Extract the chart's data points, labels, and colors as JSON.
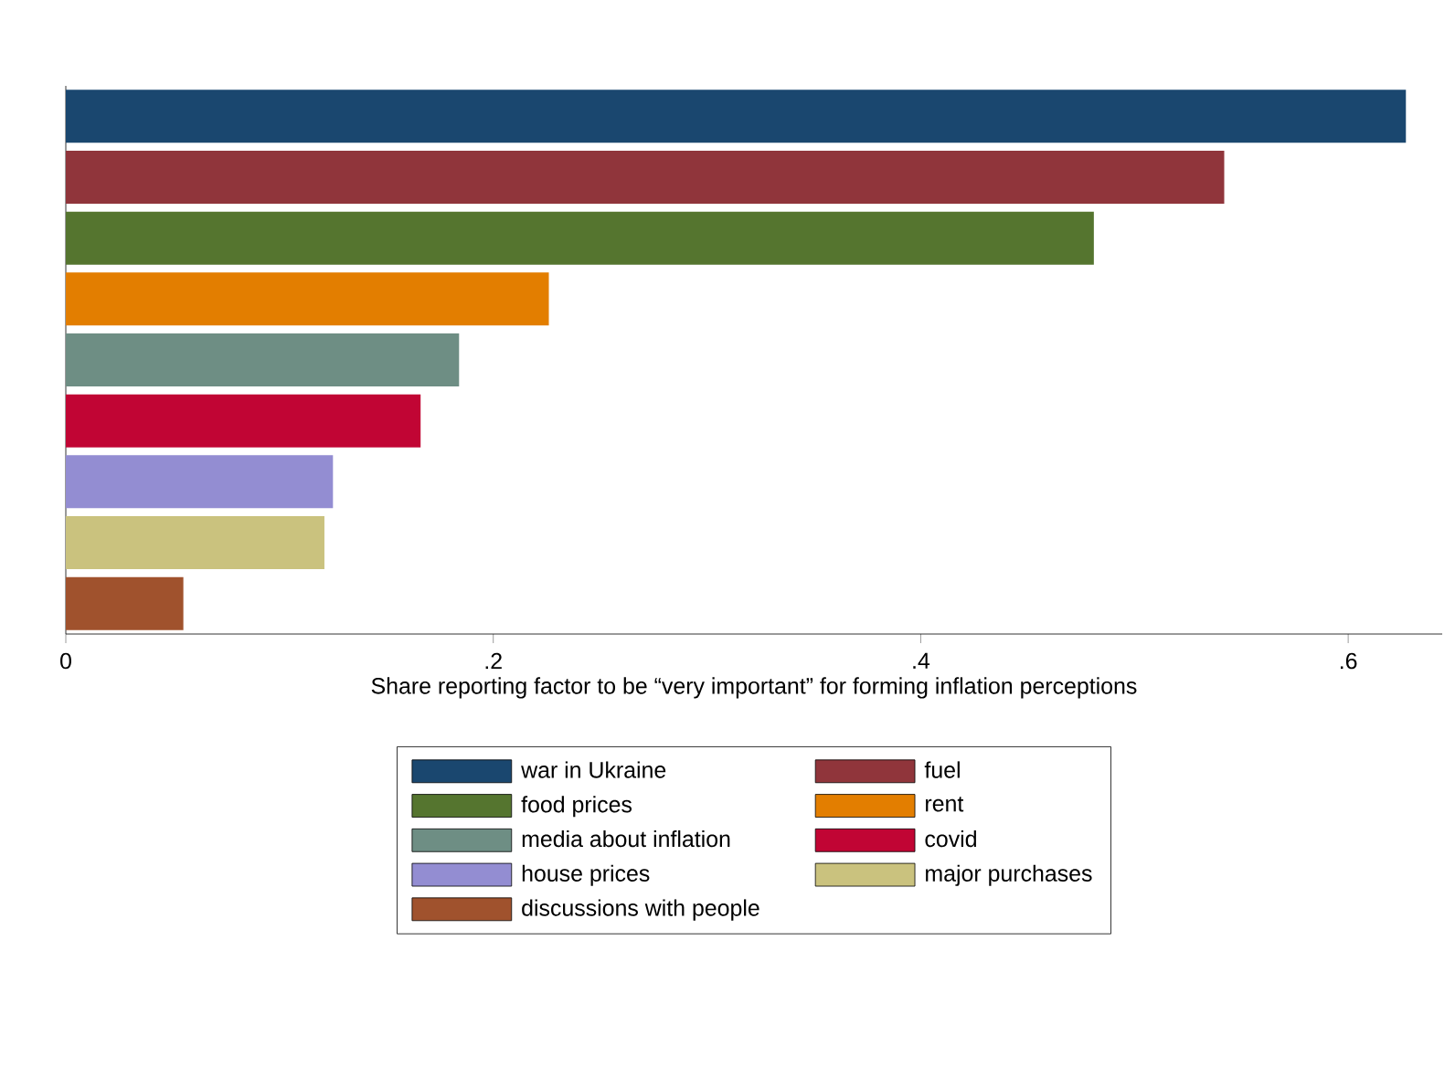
{
  "chart_data": {
    "type": "bar",
    "orientation": "horizontal",
    "xlabel": "Share reporting factor to be “very important” for forming inflation perceptions",
    "categories": [
      null,
      null,
      null,
      null,
      null,
      null,
      null,
      null,
      null
    ],
    "series": [
      {
        "name": "war in Ukraine",
        "color": "#1a476f",
        "values": [
          0.627,
          null,
          null,
          null,
          null,
          null,
          null,
          null,
          null
        ]
      },
      {
        "name": "fuel",
        "color": "#90353b",
        "values": [
          null,
          0.542,
          null,
          null,
          null,
          null,
          null,
          null,
          null
        ]
      },
      {
        "name": "food prices",
        "color": "#55752f",
        "values": [
          null,
          null,
          0.481,
          null,
          null,
          null,
          null,
          null,
          null
        ]
      },
      {
        "name": "rent",
        "color": "#e37e00",
        "values": [
          null,
          null,
          null,
          0.226,
          null,
          null,
          null,
          null,
          null
        ]
      },
      {
        "name": "media about inflation",
        "color": "#6e8e84",
        "values": [
          null,
          null,
          null,
          null,
          0.184,
          null,
          null,
          null,
          null
        ]
      },
      {
        "name": "covid",
        "color": "#c10534",
        "values": [
          null,
          null,
          null,
          null,
          null,
          0.166,
          null,
          null,
          null
        ]
      },
      {
        "name": "house prices",
        "color": "#938dd2",
        "values": [
          null,
          null,
          null,
          null,
          null,
          null,
          0.125,
          null,
          null
        ]
      },
      {
        "name": "major purchases",
        "color": "#cac27e",
        "values": [
          null,
          null,
          null,
          null,
          null,
          null,
          null,
          0.121,
          null
        ]
      },
      {
        "name": "discussions with people",
        "color": "#a0522d",
        "values": [
          null,
          null,
          null,
          null,
          null,
          null,
          null,
          null,
          0.055
        ]
      }
    ],
    "xlim": [
      0,
      0.644
    ],
    "xticks": [
      0,
      {
        "value": 0.2,
        "label": ".2"
      },
      {
        "value": 0.4,
        "label": ".4"
      },
      {
        "value": 0.6,
        "label": ".6"
      }
    ],
    "legend": "bottom",
    "grid": false
  }
}
